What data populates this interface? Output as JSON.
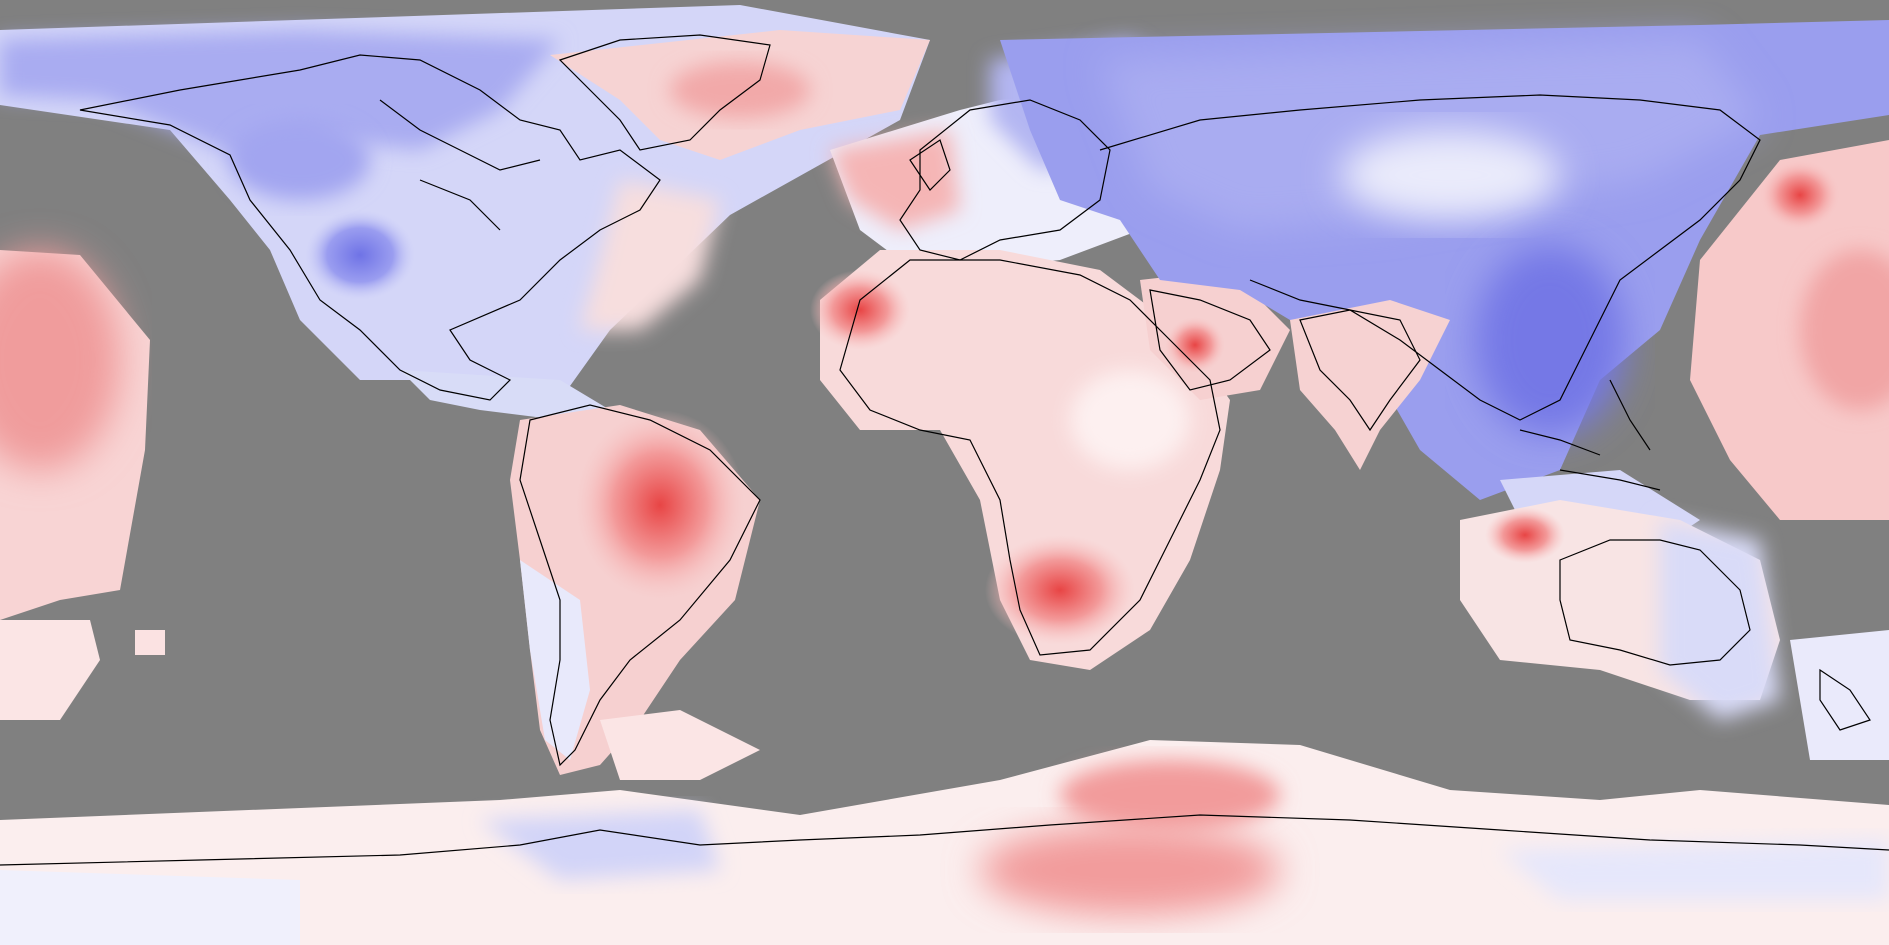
{
  "map": {
    "projection": "equirectangular",
    "background_color": "#808080",
    "coastline_color": "#000000",
    "color_scale": {
      "cold_strong": "#6f73e6",
      "cold_mid": "#a5a8f0",
      "cold_light": "#d9daf8",
      "neutral": "#fbf3f3",
      "warm_light": "#fbd2d2",
      "warm_mid": "#f6a8a8",
      "warm_strong": "#ef6f6f",
      "warm_peak": "#e84545"
    },
    "legend_text": ""
  }
}
